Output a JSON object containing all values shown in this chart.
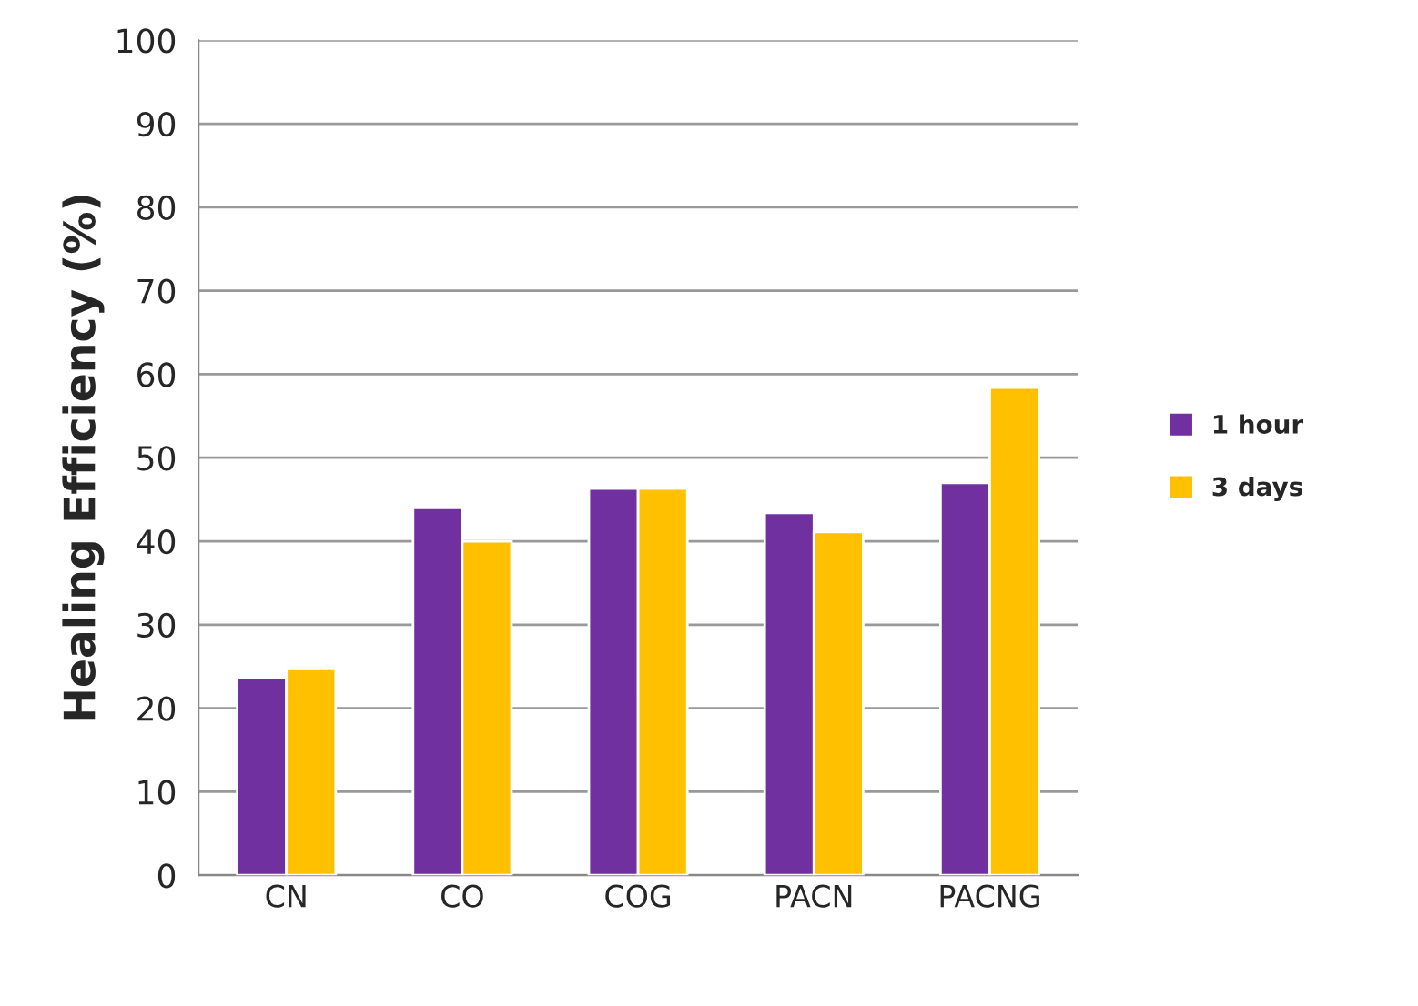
{
  "chart_data": {
    "type": "bar",
    "ylabel": "Healing Efficiency (%)",
    "categories": [
      "CN",
      "CO",
      "COG",
      "PACN",
      "PACNG"
    ],
    "series": [
      {
        "name": "1 hour",
        "color": "#7030a0",
        "values": [
          23.7,
          44.0,
          46.3,
          43.4,
          47.0
        ]
      },
      {
        "name": "3 days",
        "color": "#ffc000",
        "values": [
          24.7,
          40.0,
          46.3,
          41.1,
          58.4
        ]
      }
    ],
    "ylim": [
      0,
      100
    ],
    "yticks": [
      0,
      10,
      20,
      30,
      40,
      50,
      60,
      70,
      80,
      90,
      100
    ],
    "grid": "y",
    "legend": "right"
  }
}
